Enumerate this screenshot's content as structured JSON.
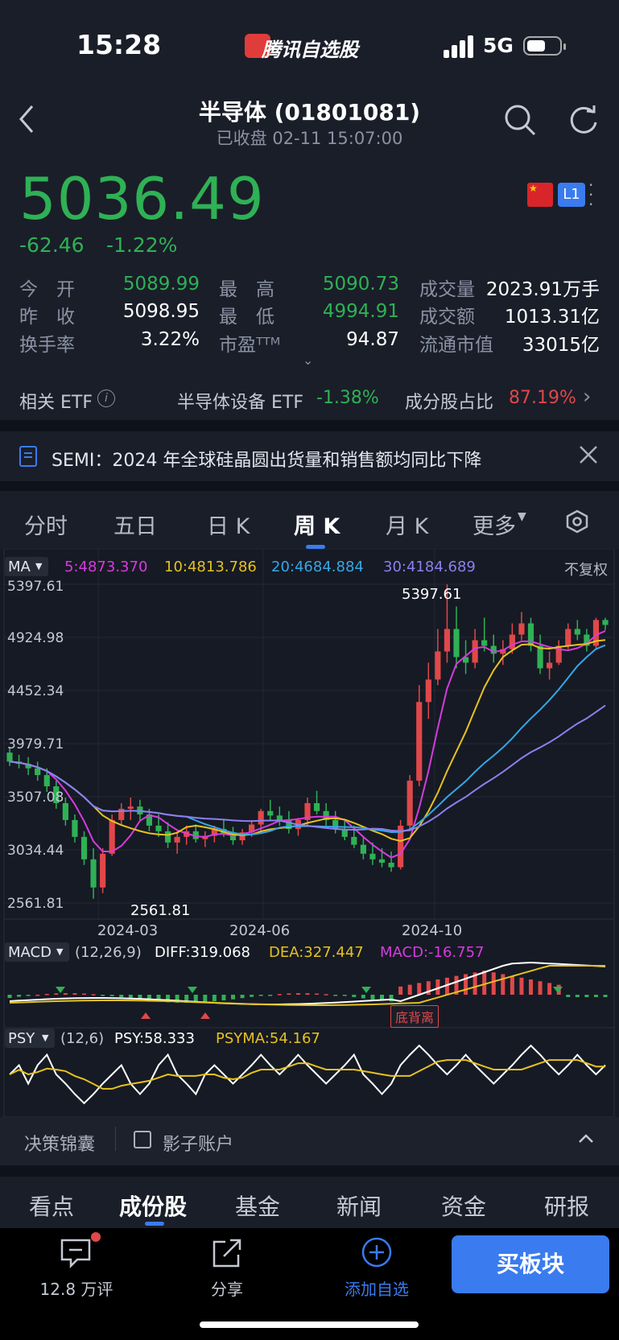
{
  "status_bar": {
    "time": "15:28",
    "app_name": "腾讯自选股",
    "network": "5G"
  },
  "header": {
    "title": "半导体 (01801081)",
    "subtitle": "已收盘   02-11 15:07:00",
    "price": "5036.49",
    "change": "-62.46",
    "change_pct": "-1.22%",
    "level_badge": "L1"
  },
  "stats": [
    {
      "label": "今　开",
      "value": "5089.99",
      "color": "green"
    },
    {
      "label": "最　高",
      "value": "5090.73",
      "color": "green"
    },
    {
      "label": "成交量",
      "value": "2023.91万手",
      "color": "white"
    },
    {
      "label": "昨　收",
      "value": "5098.95",
      "color": "white"
    },
    {
      "label": "最　低",
      "value": "4994.91",
      "color": "green"
    },
    {
      "label": "成交额",
      "value": "1013.31亿",
      "color": "white"
    },
    {
      "label": "换手率",
      "value": "3.22%",
      "color": "white"
    },
    {
      "label": "市盈ᵀᵀᴹ",
      "value": "94.87",
      "color": "white"
    },
    {
      "label": "流通市值",
      "value": "33015亿",
      "color": "white"
    }
  ],
  "etf_row": {
    "label": "相关 ETF",
    "etf_name": "半导体设备 ETF",
    "etf_change": "-1.38%",
    "ratio_label": "成分股占比",
    "ratio_value": "87.19%"
  },
  "news_banner": {
    "text": "SEMI：2024 年全球硅晶圆出货量和销售额均同比下降"
  },
  "chart_tabs": [
    "分时",
    "五日",
    "日 K",
    "周 K",
    "月 K",
    "更多"
  ],
  "chart_tabs_active": "周 K",
  "ma_legend": {
    "selector": "MA",
    "ma5": "5:4873.370",
    "ma10": "10:4813.786",
    "ma20": "20:4684.884",
    "ma30": "30:4184.689",
    "adjust": "不复权"
  },
  "colors": {
    "ma5": "#d63be0",
    "ma10": "#e6c21f",
    "ma20": "#35a7e6",
    "ma30": "#8c7ff0",
    "up": "#e0484a",
    "down": "#2fb155",
    "accent": "#3a7bf0"
  },
  "chart_data": {
    "type": "candlestick",
    "y_ticks": [
      "5397.61",
      "4924.98",
      "4452.34",
      "3979.71",
      "3507.08",
      "3034.44",
      "2561.81"
    ],
    "ylim": [
      2561.81,
      5397.61
    ],
    "x_ticks": [
      "2024-03",
      "2024-06",
      "2024-10"
    ],
    "high_annotation": "5397.61",
    "low_annotation": "2561.81",
    "candles": [
      [
        3900,
        3950,
        3780,
        3820
      ],
      [
        3820,
        3880,
        3760,
        3800
      ],
      [
        3800,
        3860,
        3700,
        3760
      ],
      [
        3760,
        3820,
        3650,
        3700
      ],
      [
        3700,
        3760,
        3550,
        3600
      ],
      [
        3600,
        3650,
        3400,
        3450
      ],
      [
        3450,
        3500,
        3250,
        3300
      ],
      [
        3300,
        3350,
        3100,
        3150
      ],
      [
        3150,
        3200,
        2900,
        2950
      ],
      [
        2950,
        3050,
        2600,
        2700
      ],
      [
        2700,
        3050,
        2650,
        3000
      ],
      [
        3000,
        3350,
        2980,
        3300
      ],
      [
        3300,
        3450,
        3250,
        3400
      ],
      [
        3400,
        3500,
        3300,
        3420
      ],
      [
        3420,
        3480,
        3300,
        3350
      ],
      [
        3350,
        3400,
        3200,
        3250
      ],
      [
        3250,
        3350,
        3150,
        3200
      ],
      [
        3200,
        3280,
        3050,
        3100
      ],
      [
        3100,
        3200,
        3000,
        3150
      ],
      [
        3150,
        3250,
        3080,
        3200
      ],
      [
        3200,
        3260,
        3100,
        3130
      ],
      [
        3130,
        3200,
        3060,
        3160
      ],
      [
        3160,
        3250,
        3100,
        3220
      ],
      [
        3220,
        3300,
        3150,
        3180
      ],
      [
        3180,
        3240,
        3080,
        3120
      ],
      [
        3120,
        3220,
        3080,
        3190
      ],
      [
        3190,
        3300,
        3150,
        3260
      ],
      [
        3260,
        3400,
        3200,
        3380
      ],
      [
        3380,
        3480,
        3300,
        3340
      ],
      [
        3340,
        3420,
        3250,
        3300
      ],
      [
        3300,
        3380,
        3180,
        3220
      ],
      [
        3220,
        3320,
        3160,
        3300
      ],
      [
        3300,
        3500,
        3250,
        3450
      ],
      [
        3450,
        3560,
        3350,
        3380
      ],
      [
        3380,
        3450,
        3250,
        3300
      ],
      [
        3300,
        3380,
        3180,
        3220
      ],
      [
        3220,
        3300,
        3120,
        3150
      ],
      [
        3150,
        3250,
        3050,
        3080
      ],
      [
        3080,
        3160,
        2950,
        3000
      ],
      [
        3000,
        3100,
        2900,
        2950
      ],
      [
        2950,
        3050,
        2880,
        2920
      ],
      [
        2920,
        3020,
        2840,
        2880
      ],
      [
        2880,
        3300,
        2860,
        3250
      ],
      [
        3250,
        3700,
        3200,
        3650
      ],
      [
        3650,
        4500,
        3600,
        4350
      ],
      [
        4350,
        4700,
        4200,
        4550
      ],
      [
        4550,
        5000,
        4500,
        4800
      ],
      [
        4800,
        5397,
        4700,
        5000
      ],
      [
        5000,
        5200,
        4650,
        4750
      ],
      [
        4750,
        4900,
        4600,
        4700
      ],
      [
        4700,
        5000,
        4650,
        4900
      ],
      [
        4900,
        5100,
        4800,
        4850
      ],
      [
        4850,
        4950,
        4700,
        4780
      ],
      [
        4780,
        4900,
        4680,
        4820
      ],
      [
        4820,
        5050,
        4780,
        4950
      ],
      [
        4950,
        5150,
        4900,
        5050
      ],
      [
        5050,
        5100,
        4800,
        4850
      ],
      [
        4850,
        4950,
        4600,
        4650
      ],
      [
        4650,
        4800,
        4550,
        4700
      ],
      [
        4700,
        4900,
        4680,
        4850
      ],
      [
        4850,
        5050,
        4820,
        5000
      ],
      [
        5000,
        5080,
        4900,
        4950
      ],
      [
        4950,
        5000,
        4800,
        4850
      ],
      [
        4850,
        5100,
        4830,
        5080
      ],
      [
        5080,
        5100,
        4990,
        5036
      ]
    ],
    "macd_legend": {
      "selector": "MACD",
      "params": "(12,26,9)",
      "diff": "DIFF:319.068",
      "dea": "DEA:327.447",
      "macd": "MACD:-16.757"
    },
    "macd_signal": "底背离",
    "psy_legend": {
      "selector": "PSY",
      "params": "(12,6)",
      "psy": "PSY:58.333",
      "psyma": "PSYMA:54.167"
    }
  },
  "decision_bar": {
    "left": "决策锦囊",
    "right": "影子账户"
  },
  "bottom_tabs": [
    "看点",
    "成份股",
    "基金",
    "新闻",
    "资金",
    "研报"
  ],
  "bottom_tabs_active": "成份股",
  "bottom_nav": {
    "comments": "12.8 万评",
    "share": "分享",
    "add": "添加自选",
    "buy": "买板块"
  }
}
